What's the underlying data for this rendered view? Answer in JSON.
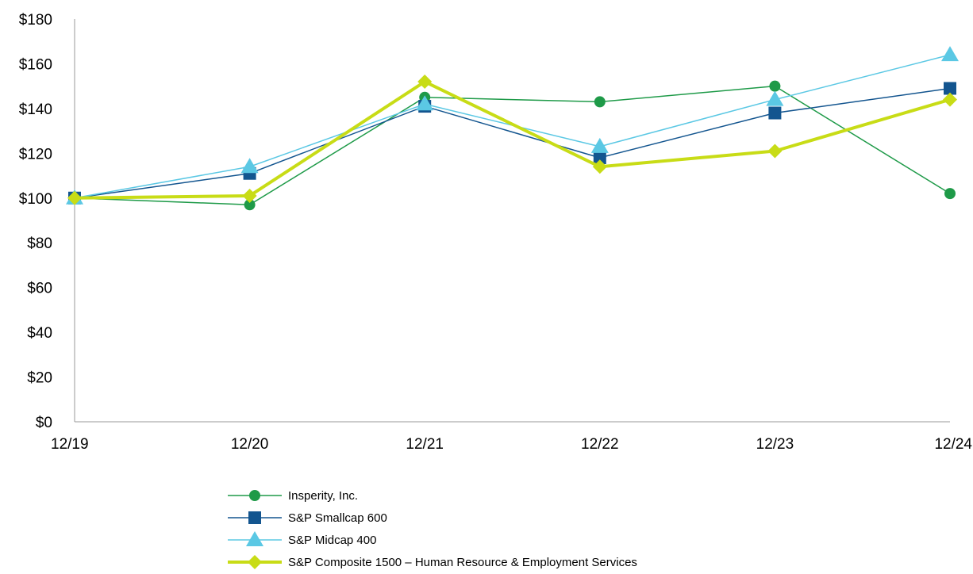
{
  "chart_data": {
    "type": "line",
    "x": [
      "12/19",
      "12/20",
      "12/21",
      "12/22",
      "12/23",
      "12/24"
    ],
    "ylim": [
      0,
      180
    ],
    "yticks": [
      0,
      20,
      40,
      60,
      80,
      100,
      120,
      140,
      160,
      180
    ],
    "ytick_labels": [
      "$0",
      "$20",
      "$40",
      "$60",
      "$80",
      "$100",
      "$120",
      "$140",
      "$160",
      "$180"
    ],
    "grid": false,
    "legend_position": "bottom",
    "series": [
      {
        "name": "Insperity, Inc.",
        "values": [
          100,
          97,
          145,
          143,
          150,
          102
        ],
        "color": "#1e9a48",
        "marker": "circle"
      },
      {
        "name": "S&P Smallcap 600",
        "values": [
          100,
          111,
          141,
          118,
          138,
          149
        ],
        "color": "#13558f",
        "marker": "square"
      },
      {
        "name": "S&P Midcap 400",
        "values": [
          100,
          114,
          142,
          123,
          144,
          164
        ],
        "color": "#5bc8e4",
        "marker": "triangle"
      },
      {
        "name": "S&P Composite 1500 – Human Resource & Employment Services",
        "values": [
          100,
          101,
          152,
          114,
          121,
          144
        ],
        "color": "#c8dc16",
        "marker": "diamond"
      }
    ]
  }
}
